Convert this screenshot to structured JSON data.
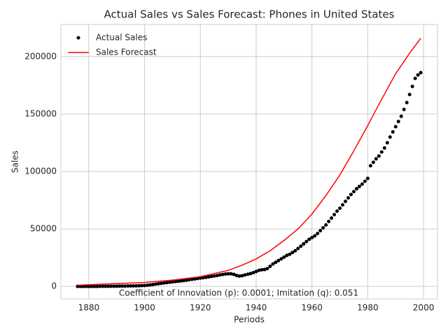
{
  "chart_data": {
    "type": "scatter-line",
    "title": "Actual Sales vs Sales Forecast: Phones in United States",
    "xlabel": "Periods",
    "ylabel": "Sales",
    "annotation": "Coefficient of Innovation (p): 0.0001; Imitation (q): 0.051",
    "xlim": [
      1870,
      2005
    ],
    "xticks": [
      1880,
      1900,
      1920,
      1940,
      1960,
      1980,
      2000
    ],
    "ylim": [
      -10850,
      227900
    ],
    "yticks": [
      0,
      50000,
      100000,
      150000,
      200000
    ],
    "grid": true,
    "legend": "upper left",
    "series": [
      {
        "name": "Actual Sales",
        "kind": "scatter",
        "color": "#000000",
        "x": [
          1876,
          1877,
          1878,
          1879,
          1880,
          1881,
          1882,
          1883,
          1884,
          1885,
          1886,
          1887,
          1888,
          1889,
          1890,
          1891,
          1892,
          1893,
          1894,
          1895,
          1896,
          1897,
          1898,
          1899,
          1900,
          1901,
          1902,
          1903,
          1904,
          1905,
          1906,
          1907,
          1908,
          1909,
          1910,
          1911,
          1912,
          1913,
          1914,
          1915,
          1916,
          1917,
          1918,
          1919,
          1920,
          1921,
          1922,
          1923,
          1924,
          1925,
          1926,
          1927,
          1928,
          1929,
          1930,
          1931,
          1932,
          1933,
          1934,
          1935,
          1936,
          1937,
          1938,
          1939,
          1940,
          1941,
          1942,
          1943,
          1944,
          1945,
          1946,
          1947,
          1948,
          1949,
          1950,
          1951,
          1952,
          1953,
          1954,
          1955,
          1956,
          1957,
          1958,
          1959,
          1960,
          1961,
          1962,
          1963,
          1964,
          1965,
          1966,
          1967,
          1968,
          1969,
          1970,
          1971,
          1972,
          1973,
          1974,
          1975,
          1976,
          1977,
          1978,
          1979,
          1980,
          1981,
          1982,
          1983,
          1984,
          1985,
          1986,
          1987,
          1988,
          1989,
          1990,
          1991,
          1992,
          1993,
          1994,
          1995,
          1996,
          1997,
          1998,
          1999
        ],
        "values": [
          0,
          0,
          0,
          0,
          0,
          0,
          0,
          0,
          100,
          100,
          100,
          100,
          200,
          200,
          200,
          300,
          300,
          300,
          400,
          400,
          500,
          500,
          600,
          700,
          800,
          1000,
          1300,
          1600,
          2000,
          2400,
          2700,
          3000,
          3300,
          3600,
          3900,
          4200,
          4500,
          4800,
          5100,
          5400,
          5800,
          6200,
          6500,
          6900,
          7300,
          7600,
          7900,
          8300,
          8700,
          9100,
          9500,
          10000,
          10400,
          10800,
          11000,
          11000,
          10500,
          9500,
          9000,
          9300,
          10000,
          10600,
          11200,
          12000,
          13000,
          14000,
          14500,
          14700,
          15500,
          17500,
          19500,
          21000,
          22500,
          24000,
          25500,
          27000,
          28000,
          29500,
          31000,
          33000,
          35000,
          37000,
          39000,
          41000,
          42500,
          44000,
          46000,
          48500,
          51000,
          53500,
          56500,
          59500,
          62500,
          65500,
          68000,
          71000,
          74000,
          77000,
          80000,
          82500,
          85000,
          87000,
          89000,
          91500,
          94000,
          105000,
          108000,
          111000,
          113500,
          117000,
          120500,
          125000,
          130000,
          134500,
          139000,
          143500,
          148000,
          154000,
          160000,
          167000,
          174000,
          181000,
          184000,
          186000
        ]
      },
      {
        "name": "Sales Forecast",
        "kind": "line",
        "color": "#ff0000",
        "x": [
          1876,
          1880,
          1890,
          1900,
          1910,
          1920,
          1930,
          1935,
          1940,
          1945,
          1950,
          1955,
          1960,
          1965,
          1970,
          1975,
          1980,
          1985,
          1990,
          1995,
          1999
        ],
        "values": [
          1000,
          1500,
          2500,
          3500,
          5500,
          8500,
          14000,
          18500,
          24000,
          31000,
          40000,
          50000,
          63000,
          79000,
          97000,
          118000,
          140000,
          163000,
          185000,
          203000,
          216000
        ]
      }
    ]
  }
}
